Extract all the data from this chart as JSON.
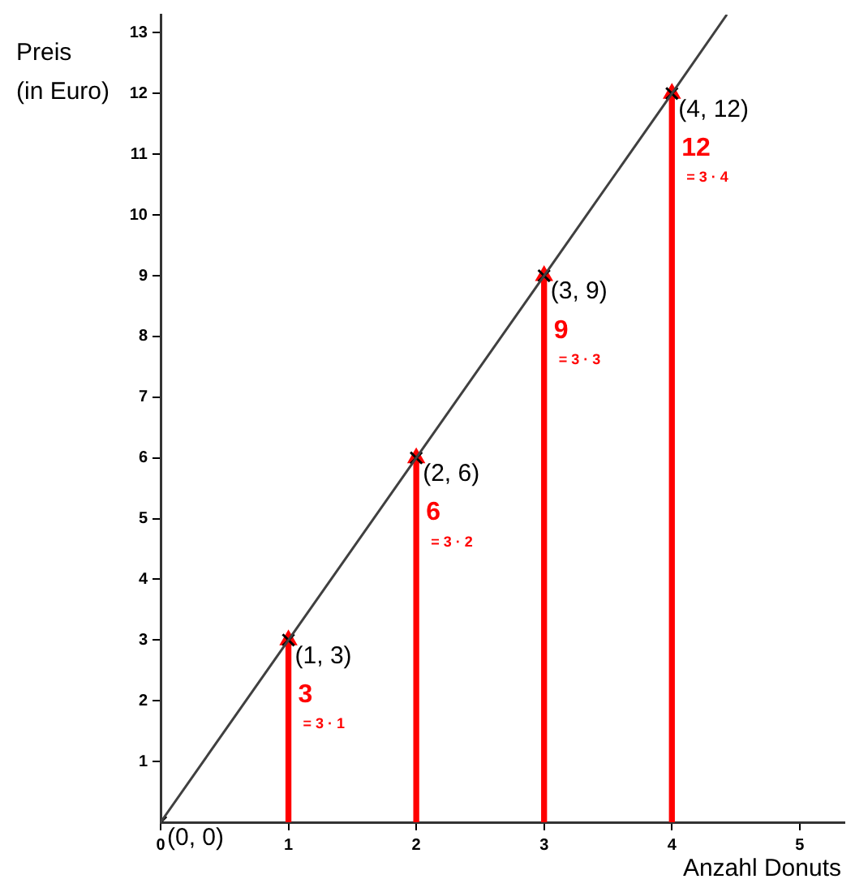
{
  "chart_data": {
    "type": "line",
    "xlabel": "Anzahl Donuts",
    "ylabel": "Preis\n(in Euro)",
    "xlim": [
      0,
      5.35
    ],
    "ylim": [
      0,
      13.3
    ],
    "xticks": [
      0,
      1,
      2,
      3,
      4,
      5
    ],
    "yticks": [
      1,
      2,
      3,
      4,
      5,
      6,
      7,
      8,
      9,
      10,
      11,
      12,
      13
    ],
    "grid": false,
    "legend": false,
    "series": [
      {
        "color": "#404040",
        "x": [
          0,
          1,
          2,
          3,
          4,
          4.43
        ],
        "values": [
          0,
          3,
          6,
          9,
          12,
          13.3
        ],
        "marker": "none"
      },
      {
        "type": "scatter",
        "color": "#000000",
        "x": [
          0,
          1,
          2,
          3,
          4
        ],
        "values": [
          0,
          3,
          6,
          9,
          12
        ],
        "marker": "cross",
        "value_labels": [
          "(0, 0)",
          "(1, 3)",
          "(2, 6)",
          "(3, 9)",
          "(4, 12)"
        ]
      },
      {
        "type": "bar",
        "color": "#ff0000",
        "x": [
          1,
          2,
          3,
          4
        ],
        "values": [
          3,
          6,
          9,
          12
        ],
        "value_labels": [
          "3",
          "6",
          "9",
          "12"
        ]
      },
      {
        "type": "scatter",
        "color": "#ff0000",
        "x": [
          1,
          2,
          3,
          4
        ],
        "values": [
          3,
          6,
          9,
          12
        ],
        "marker": "triangle"
      }
    ],
    "annotations": [
      "= 3 · 1",
      "= 3 · 2",
      "= 3 · 3",
      "= 3 · 4"
    ]
  }
}
